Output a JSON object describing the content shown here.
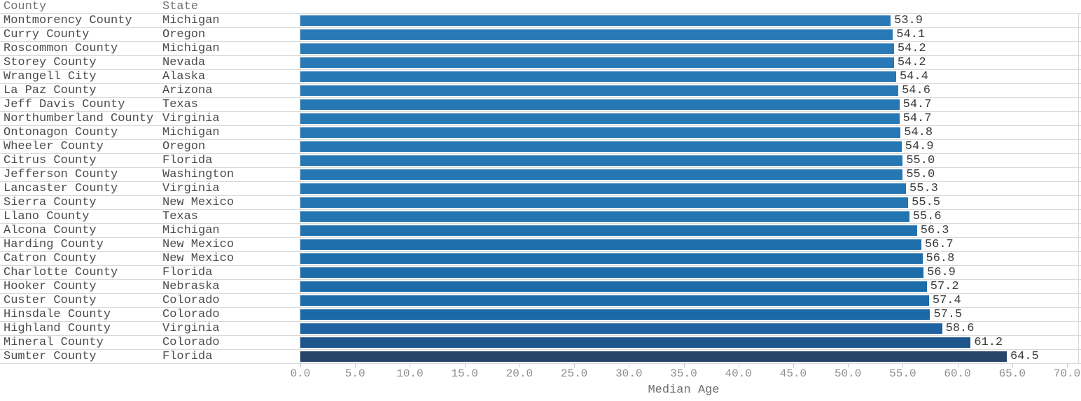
{
  "table": {
    "header": {
      "county": "County",
      "state": "State"
    }
  },
  "colors": {
    "bar_primary": "#2879b5",
    "bar_max": "#254468",
    "grid_line": "#d9d9d9",
    "tick_mark": "#c4c4c4",
    "row_label": "#4b4b4b",
    "header_label": "#737373",
    "tick_label": "#8e8e8e",
    "axis_title": "#6e6e6e",
    "value_label": "#3a3a3a",
    "background": "#ffffff"
  },
  "chart_data": {
    "type": "bar",
    "orientation": "horizontal",
    "title": "",
    "xlabel": "Median Age",
    "ylabel": "",
    "xlim": [
      0,
      70
    ],
    "tick_interval": 5,
    "x_ticks": [
      "0.0",
      "5.0",
      "10.0",
      "15.0",
      "20.0",
      "25.0",
      "30.0",
      "35.0",
      "40.0",
      "45.0",
      "50.0",
      "55.0",
      "60.0",
      "65.0",
      "70.0"
    ],
    "columns": [
      "County",
      "State",
      "Median Age"
    ],
    "legend": "none",
    "grid": "row-dividers-only",
    "rows": [
      {
        "county": "Montmorency County",
        "state": "Michigan",
        "value": 53.9,
        "label": "53.9",
        "color": "#2879b5"
      },
      {
        "county": "Curry County",
        "state": "Oregon",
        "value": 54.1,
        "label": "54.1",
        "color": "#2879b5"
      },
      {
        "county": "Roscommon County",
        "state": "Michigan",
        "value": 54.2,
        "label": "54.2",
        "color": "#2879b5"
      },
      {
        "county": "Storey County",
        "state": "Nevada",
        "value": 54.2,
        "label": "54.2",
        "color": "#2879b5"
      },
      {
        "county": "Wrangell City",
        "state": "Alaska",
        "value": 54.4,
        "label": "54.4",
        "color": "#2778b4"
      },
      {
        "county": "La Paz County",
        "state": "Arizona",
        "value": 54.6,
        "label": "54.6",
        "color": "#2778b4"
      },
      {
        "county": "Jeff Davis County",
        "state": "Texas",
        "value": 54.7,
        "label": "54.7",
        "color": "#2678b4"
      },
      {
        "county": "Northumberland County",
        "state": "Virginia",
        "value": 54.7,
        "label": "54.7",
        "color": "#2678b4"
      },
      {
        "county": "Ontonagon County",
        "state": "Michigan",
        "value": 54.8,
        "label": "54.8",
        "color": "#2677b3"
      },
      {
        "county": "Wheeler County",
        "state": "Oregon",
        "value": 54.9,
        "label": "54.9",
        "color": "#2577b3"
      },
      {
        "county": "Citrus County",
        "state": "Florida",
        "value": 55.0,
        "label": "55.0",
        "color": "#2577b3"
      },
      {
        "county": "Jefferson County",
        "state": "Washington",
        "value": 55.0,
        "label": "55.0",
        "color": "#2577b3"
      },
      {
        "county": "Lancaster County",
        "state": "Virginia",
        "value": 55.3,
        "label": "55.3",
        "color": "#2476b2"
      },
      {
        "county": "Sierra County",
        "state": "New Mexico",
        "value": 55.5,
        "label": "55.5",
        "color": "#2375b2"
      },
      {
        "county": "Llano County",
        "state": "Texas",
        "value": 55.6,
        "label": "55.6",
        "color": "#2275b1"
      },
      {
        "county": "Alcona County",
        "state": "Michigan",
        "value": 56.3,
        "label": "56.3",
        "color": "#2071af"
      },
      {
        "county": "Harding County",
        "state": "New Mexico",
        "value": 56.7,
        "label": "56.7",
        "color": "#1f6fad"
      },
      {
        "county": "Catron County",
        "state": "New Mexico",
        "value": 56.8,
        "label": "56.8",
        "color": "#1e6eac"
      },
      {
        "county": "Charlotte County",
        "state": "Florida",
        "value": 56.9,
        "label": "56.9",
        "color": "#1e6dab"
      },
      {
        "county": "Hooker County",
        "state": "Nebraska",
        "value": 57.2,
        "label": "57.2",
        "color": "#1d6caa"
      },
      {
        "county": "Custer County",
        "state": "Colorado",
        "value": 57.4,
        "label": "57.4",
        "color": "#1c6aa8"
      },
      {
        "county": "Hinsdale County",
        "state": "Colorado",
        "value": 57.5,
        "label": "57.5",
        "color": "#1c69a7"
      },
      {
        "county": "Highland County",
        "state": "Virginia",
        "value": 58.6,
        "label": "58.6",
        "color": "#1e62a1"
      },
      {
        "county": "Mineral County",
        "state": "Colorado",
        "value": 61.2,
        "label": "61.2",
        "color": "#1e548c"
      },
      {
        "county": "Sumter County",
        "state": "Florida",
        "value": 64.5,
        "label": "64.5",
        "color": "#254468"
      }
    ]
  }
}
